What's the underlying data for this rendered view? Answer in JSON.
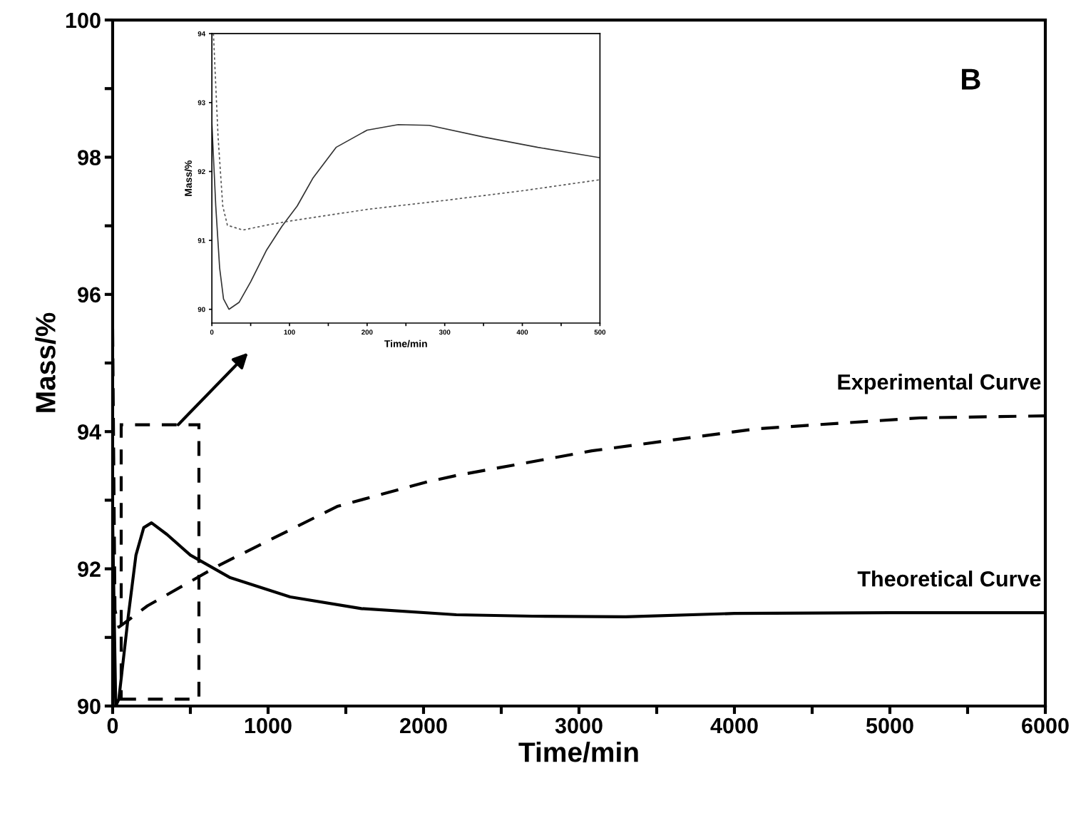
{
  "chart_data": [
    {
      "type": "line",
      "xlabel": "Time/min",
      "ylabel": "Mass/%",
      "xlim": [
        0,
        6000
      ],
      "ylim": [
        90,
        100
      ],
      "xticks": [
        0,
        {
          "value": 500,
          "label": null
        },
        1000,
        {
          "value": 1500,
          "label": null
        },
        2000,
        {
          "value": 2500,
          "label": null
        },
        3000,
        {
          "value": 3500,
          "label": null
        },
        4000,
        {
          "value": 4500,
          "label": null
        },
        5000,
        {
          "value": 5500,
          "label": null
        },
        6000
      ],
      "yticks": [
        90,
        {
          "value": 91,
          "label": null
        },
        92,
        {
          "value": 93,
          "label": null
        },
        94,
        {
          "value": 95,
          "label": null
        },
        96,
        {
          "value": 97,
          "label": null
        },
        98,
        {
          "value": 99,
          "label": null
        },
        100
      ],
      "grid": false,
      "legend": false,
      "series": [
        {
          "name": "Theoretical Curve",
          "color": "#000000",
          "line_style": "solid",
          "x": [
            0,
            20,
            40,
            60,
            100,
            150,
            200,
            250,
            350,
            500,
            757,
            1142,
            1600,
            2211,
            2700,
            3300,
            4000,
            5000,
            6000
          ],
          "values": [
            92.7,
            90.0,
            90.1,
            90.5,
            91.3,
            92.2,
            92.6,
            92.67,
            92.5,
            92.2,
            91.87,
            91.59,
            91.42,
            91.33,
            91.31,
            91.3,
            91.35,
            91.36,
            91.36
          ]
        },
        {
          "name": "Experimental Curve",
          "color": "#000000",
          "line_style": "dashed",
          "x": [
            0,
            15,
            40,
            100,
            224,
            683,
            1445,
            2028,
            2211,
            3083,
            4138,
            5193,
            6000
          ],
          "values": [
            95.5,
            91.4,
            91.15,
            91.25,
            91.46,
            92.05,
            92.91,
            93.27,
            93.36,
            93.72,
            94.04,
            94.2,
            94.23
          ]
        }
      ],
      "annotations": [
        "B"
      ]
    },
    {
      "type": "line",
      "xlabel": "Time/min",
      "ylabel": "Mass/%",
      "xlim": [
        0,
        500
      ],
      "ylim": [
        89.8,
        94
      ],
      "xticks": [
        0,
        {
          "value": 50,
          "label": null
        },
        100,
        {
          "value": 150,
          "label": null
        },
        200,
        {
          "value": 250,
          "label": null
        },
        300,
        {
          "value": 350,
          "label": null
        },
        400,
        {
          "value": 450,
          "label": null
        },
        500
      ],
      "yticks": [
        90,
        91,
        92,
        93,
        94
      ],
      "grid": false,
      "legend": false,
      "series": [
        {
          "color": "#333333",
          "line_style": "solid",
          "x": [
            0,
            5,
            10,
            15,
            22,
            35,
            50,
            70,
            90,
            110,
            130,
            160,
            200,
            240,
            280,
            350,
            420,
            500
          ],
          "values": [
            92.7,
            91.5,
            90.6,
            90.15,
            90.0,
            90.1,
            90.4,
            90.85,
            91.2,
            91.5,
            91.9,
            92.35,
            92.6,
            92.68,
            92.67,
            92.5,
            92.35,
            92.2
          ]
        },
        {
          "color": "#555555",
          "line_style": "dotted",
          "x": [
            2,
            8,
            14,
            20,
            40,
            70,
            100,
            200,
            300,
            400,
            500
          ],
          "values": [
            94.0,
            92.5,
            91.5,
            91.22,
            91.15,
            91.22,
            91.28,
            91.45,
            91.58,
            91.72,
            91.88
          ]
        }
      ]
    }
  ]
}
